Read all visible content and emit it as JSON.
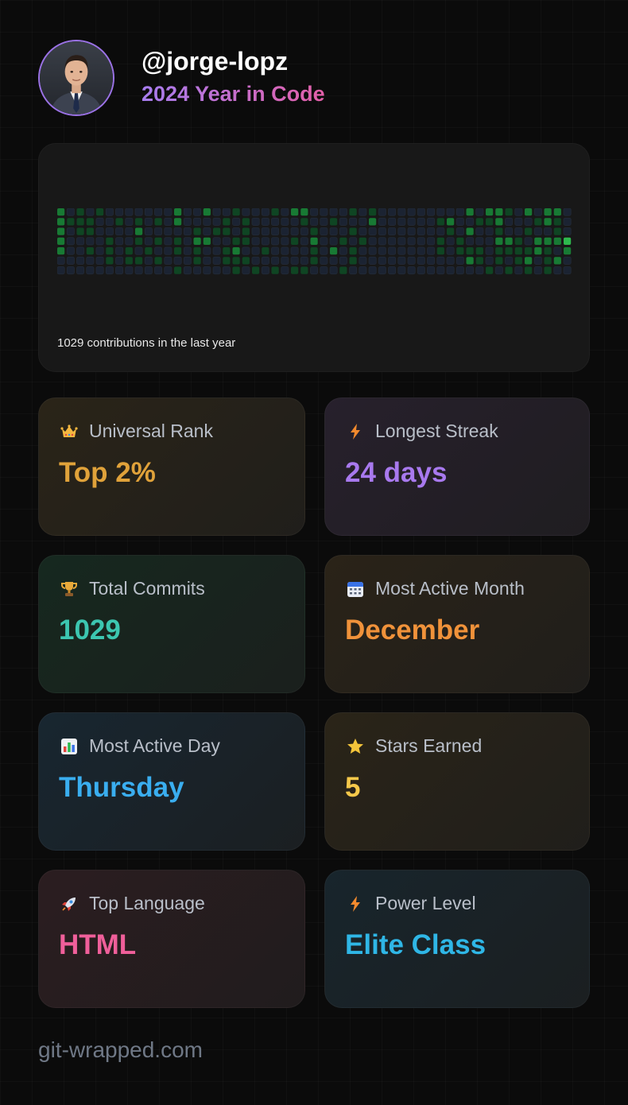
{
  "profile": {
    "username": "@jorge-lopz",
    "subtitle": "2024 Year in Code"
  },
  "contributions": {
    "caption": "1029 contributions in the last year",
    "weeks": 53,
    "days": 7,
    "colors": [
      "#1b2332",
      "#0f4523",
      "#187a34",
      "#2eb84d",
      "#3ee060"
    ],
    "levels": [
      "20101000000020020010001022000010100000000020221020220",
      "21110010101020000101000001001000200000012001120001210",
      "20110000200000101101000000100010000000001020010010010",
      "20000100101010220011000010200101000000010100022102223",
      "20010101010010100120010000102010000000010111011112102",
      "00000101101000100111000000100010000000000021010120120",
      "00000000000010000010101011000100000000000000101010100"
    ]
  },
  "stats": [
    {
      "id": "universal-rank",
      "icon": "crown-icon",
      "label": "Universal Rank",
      "value": "Top 2%",
      "color": "#e0a23a",
      "bg": "#2a2418"
    },
    {
      "id": "longest-streak",
      "icon": "lightning-icon",
      "label": "Longest Streak",
      "value": "24 days",
      "color": "#a879ee",
      "bg": "#27202c"
    },
    {
      "id": "total-commits",
      "icon": "trophy-icon",
      "label": "Total Commits",
      "value": "1029",
      "color": "#3cc6b0",
      "bg": "#16281f"
    },
    {
      "id": "most-active-month",
      "icon": "calendar-icon",
      "label": "Most Active Month",
      "value": "December",
      "color": "#f0923a",
      "bg": "#2a2318"
    },
    {
      "id": "most-active-day",
      "icon": "bar-chart-icon",
      "label": "Most Active Day",
      "value": "Thursday",
      "color": "#3aaef0",
      "bg": "#182630"
    },
    {
      "id": "stars-earned",
      "icon": "star-icon",
      "label": "Stars Earned",
      "value": "5",
      "color": "#f5c84a",
      "bg": "#2a2418"
    },
    {
      "id": "top-language",
      "icon": "rocket-icon",
      "label": "Top Language",
      "value": "HTML",
      "color": "#ef5f9a",
      "bg": "#2b1d20"
    },
    {
      "id": "power-level",
      "icon": "lightning-icon",
      "label": "Power Level",
      "value": "Elite Class",
      "color": "#2fb6e6",
      "bg": "#18252c"
    }
  ],
  "footer": {
    "brand": "git-wrapped.com"
  }
}
